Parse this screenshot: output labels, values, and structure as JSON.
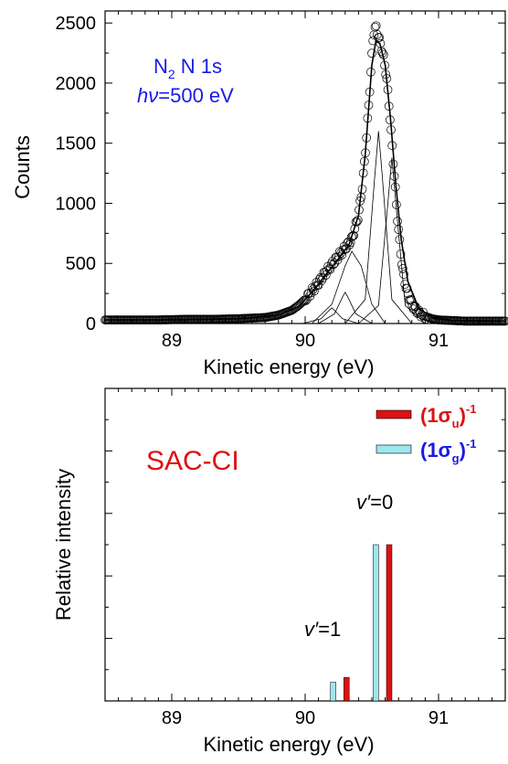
{
  "chart_data": [
    {
      "type": "scatter",
      "annotation": {
        "line1": "N",
        "line1_sub": "2",
        "line1_rest": " N 1s",
        "line2_italic": "hν",
        "line2_rest": "=500 eV",
        "color": "#1a1ae6"
      },
      "xlabel": "Kinetic energy (eV)",
      "ylabel": "Counts",
      "xlim": [
        88.5,
        91.5
      ],
      "ylim": [
        0,
        2600
      ],
      "xticks": [
        89,
        90,
        91
      ],
      "xtick_labels": [
        "89",
        "90",
        "91"
      ],
      "yticks": [
        0,
        500,
        1000,
        1500,
        2000,
        2500
      ],
      "ytick_labels": [
        "0",
        "500",
        "1000",
        "1500",
        "2000",
        "2500"
      ],
      "series": [
        {
          "role": "data",
          "marker": "open-circle",
          "x": [
            88.5,
            88.7,
            88.9,
            89.1,
            89.3,
            89.5,
            89.7,
            89.8,
            89.9,
            89.95,
            90.0,
            90.05,
            90.1,
            90.15,
            90.2,
            90.25,
            90.3,
            90.35,
            90.4,
            90.43,
            90.46,
            90.49,
            90.51,
            90.53,
            90.55,
            90.57,
            90.59,
            90.61,
            90.63,
            90.65,
            90.67,
            90.69,
            90.71,
            90.73,
            90.76,
            90.8,
            90.85,
            90.9,
            90.95,
            91.0,
            91.1,
            91.2,
            91.3,
            91.4,
            91.5
          ],
          "y": [
            30,
            30,
            30,
            35,
            35,
            40,
            50,
            70,
            110,
            150,
            200,
            270,
            340,
            420,
            490,
            560,
            630,
            700,
            900,
            1150,
            1550,
            2050,
            2400,
            2470,
            2380,
            2300,
            2200,
            2050,
            1800,
            1500,
            1200,
            900,
            650,
            450,
            280,
            160,
            90,
            60,
            40,
            30,
            25,
            20,
            20,
            20,
            20
          ]
        },
        {
          "role": "fit-total",
          "x": [
            88.5,
            89.0,
            89.5,
            89.8,
            89.95,
            90.05,
            90.15,
            90.25,
            90.33,
            90.4,
            90.45,
            90.5,
            90.53,
            90.56,
            90.6,
            90.64,
            90.68,
            90.72,
            90.77,
            90.85,
            90.95,
            91.1,
            91.5
          ],
          "y": [
            30,
            30,
            40,
            70,
            140,
            260,
            400,
            540,
            660,
            900,
            1400,
            2150,
            2350,
            2330,
            2150,
            1700,
            1150,
            700,
            350,
            130,
            50,
            25,
            20
          ]
        },
        {
          "role": "component",
          "x": [
            90.3,
            90.45,
            90.52,
            90.55,
            90.58,
            90.65,
            90.8
          ],
          "y": [
            0,
            200,
            1200,
            1600,
            1200,
            200,
            0
          ]
        },
        {
          "role": "component",
          "x": [
            90.4,
            90.55,
            90.62,
            90.65,
            90.68,
            90.75,
            90.9
          ],
          "y": [
            0,
            150,
            1000,
            1380,
            1000,
            150,
            0
          ]
        },
        {
          "role": "component",
          "x": [
            90.1,
            90.22,
            90.28,
            90.3,
            90.32,
            90.38,
            90.5
          ],
          "y": [
            0,
            80,
            220,
            260,
            220,
            80,
            0
          ]
        },
        {
          "role": "component",
          "x": [
            89.98,
            90.12,
            90.18,
            90.2,
            90.22,
            90.28,
            90.4
          ],
          "y": [
            0,
            40,
            110,
            130,
            110,
            40,
            0
          ]
        },
        {
          "role": "component",
          "x": [
            90.05,
            90.2,
            90.3,
            90.35,
            90.42,
            90.5,
            90.6
          ],
          "y": [
            0,
            160,
            480,
            600,
            480,
            160,
            0
          ]
        }
      ]
    },
    {
      "type": "bar",
      "title": "SAC-CI",
      "xlabel": "Kinetic energy (eV)",
      "ylabel": "Relative intensity",
      "xlim": [
        88.5,
        91.5
      ],
      "ylim": [
        0,
        1.0
      ],
      "xticks": [
        89,
        90,
        91
      ],
      "xtick_labels": [
        "89",
        "90",
        "91"
      ],
      "yticks": [
        0.2,
        0.4,
        0.6,
        0.8,
        1.0
      ],
      "grid": false,
      "legend_position": "top-right",
      "legend": [
        {
          "label_main": "(1σ",
          "label_sub": "u",
          "label_close": ")",
          "label_sup": "-1",
          "color": "#dd1111"
        },
        {
          "label_main": "(1σ",
          "label_sub": "g",
          "label_close": ")",
          "label_sup": "-1",
          "color": "#9de6ee"
        }
      ],
      "annotations": [
        {
          "text_italic": "v′",
          "text_rest": "=0",
          "x": 90.58,
          "y": 0.64
        },
        {
          "text_italic": "v′",
          "text_rest": "=1",
          "x": 90.21,
          "y": 0.2
        }
      ],
      "series": [
        {
          "name": "(1σu)-1",
          "color": "#dd1111",
          "x": [
            90.31,
            90.63
          ],
          "values": [
            0.075,
            0.5
          ]
        },
        {
          "name": "(1σg)-1",
          "color": "#9de6ee",
          "x": [
            90.21,
            90.53
          ],
          "values": [
            0.06,
            0.5
          ]
        }
      ]
    }
  ]
}
